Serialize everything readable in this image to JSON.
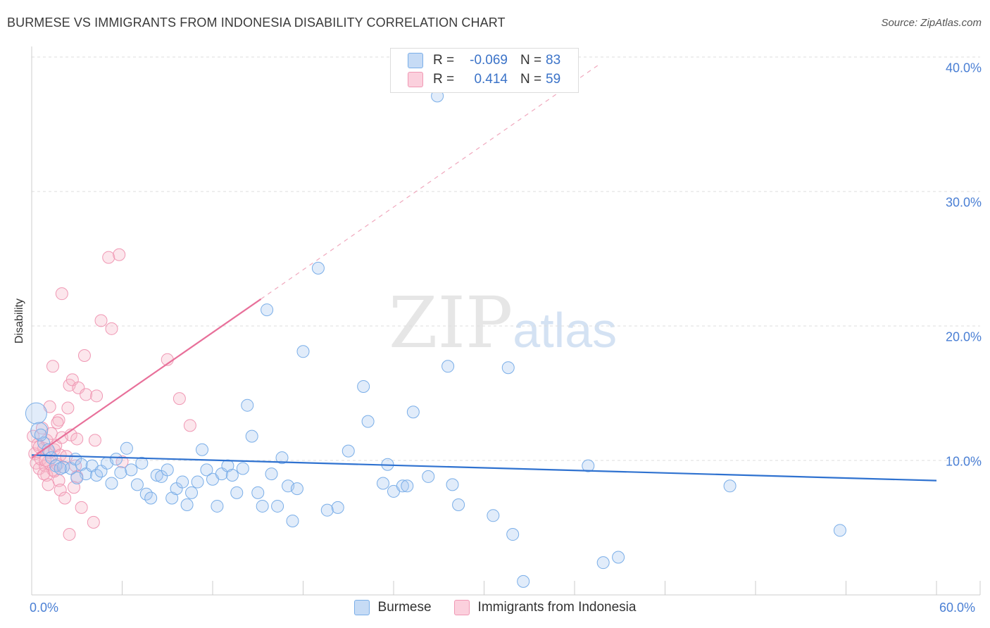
{
  "title": "BURMESE VS IMMIGRANTS FROM INDONESIA DISABILITY CORRELATION CHART",
  "source": "Source: ZipAtlas.com",
  "watermark": {
    "zip": "ZIP",
    "atlas": "atlas"
  },
  "legend": {
    "rows": [
      {
        "r_label": "R =",
        "r_value": "-0.069",
        "n_label": "N =",
        "n_value": "83",
        "color": "#a8c8f0"
      },
      {
        "r_label": "R =",
        "r_value": "0.414",
        "n_label": "N =",
        "n_value": "59",
        "color": "#f6b8c8"
      }
    ]
  },
  "bottom_legend": [
    {
      "label": "Burmese",
      "color": "#a8c8f0"
    },
    {
      "label": "Immigrants from Indonesia",
      "color": "#f6b8c8"
    }
  ],
  "chart_data": {
    "type": "scatter",
    "title": "BURMESE VS IMMIGRANTS FROM INDONESIA DISABILITY CORRELATION CHART",
    "xlabel": "",
    "ylabel": "Disability",
    "xlim": [
      0,
      60
    ],
    "ylim": [
      0,
      40
    ],
    "x_tick_labels": [
      "0.0%",
      "60.0%"
    ],
    "y_ticks": [
      10,
      20,
      30,
      40
    ],
    "y_tick_labels": [
      "10.0%",
      "20.0%",
      "30.0%",
      "40.0%"
    ],
    "grid": true,
    "legend_position": "top-center",
    "series": [
      {
        "name": "Burmese",
        "color": "#7aaee8",
        "trend": {
          "x": [
            0,
            60
          ],
          "y": [
            10.4,
            8.5
          ]
        },
        "points": [
          [
            0.3,
            13.5
          ],
          [
            0.5,
            12.2
          ],
          [
            0.8,
            11.3
          ],
          [
            1.1,
            10.8
          ],
          [
            1.3,
            10.2
          ],
          [
            1.6,
            9.6
          ],
          [
            2.1,
            9.5
          ],
          [
            2.6,
            9.4
          ],
          [
            2.9,
            10.1
          ],
          [
            3.3,
            9.7
          ],
          [
            3.6,
            9.0
          ],
          [
            4.0,
            9.6
          ],
          [
            4.3,
            8.9
          ],
          [
            4.6,
            9.2
          ],
          [
            5.0,
            9.8
          ],
          [
            5.3,
            8.3
          ],
          [
            5.6,
            10.1
          ],
          [
            5.9,
            9.1
          ],
          [
            6.3,
            10.9
          ],
          [
            6.6,
            9.3
          ],
          [
            7.0,
            8.2
          ],
          [
            7.3,
            9.8
          ],
          [
            7.6,
            7.5
          ],
          [
            7.9,
            7.2
          ],
          [
            8.3,
            8.9
          ],
          [
            8.6,
            8.8
          ],
          [
            9.0,
            9.3
          ],
          [
            9.3,
            7.2
          ],
          [
            9.6,
            7.9
          ],
          [
            10.0,
            8.4
          ],
          [
            10.3,
            6.7
          ],
          [
            10.6,
            7.6
          ],
          [
            11.0,
            8.4
          ],
          [
            11.3,
            10.8
          ],
          [
            11.6,
            9.3
          ],
          [
            12.0,
            8.6
          ],
          [
            12.3,
            6.6
          ],
          [
            12.6,
            9.0
          ],
          [
            13.0,
            9.6
          ],
          [
            13.3,
            8.9
          ],
          [
            13.6,
            7.6
          ],
          [
            14.0,
            9.4
          ],
          [
            14.3,
            14.1
          ],
          [
            14.6,
            11.8
          ],
          [
            15.0,
            7.6
          ],
          [
            15.3,
            6.6
          ],
          [
            15.6,
            21.2
          ],
          [
            15.9,
            9.0
          ],
          [
            16.3,
            6.6
          ],
          [
            16.6,
            10.2
          ],
          [
            17.0,
            8.1
          ],
          [
            17.3,
            5.5
          ],
          [
            17.6,
            7.9
          ],
          [
            18.0,
            18.1
          ],
          [
            19.0,
            24.3
          ],
          [
            19.6,
            6.3
          ],
          [
            20.3,
            6.5
          ],
          [
            21.0,
            10.7
          ],
          [
            22.0,
            15.5
          ],
          [
            22.3,
            12.9
          ],
          [
            23.3,
            8.3
          ],
          [
            23.6,
            9.7
          ],
          [
            24.0,
            7.7
          ],
          [
            24.6,
            8.1
          ],
          [
            24.9,
            8.1
          ],
          [
            25.3,
            13.6
          ],
          [
            26.3,
            8.8
          ],
          [
            26.9,
            37.1
          ],
          [
            27.6,
            17.0
          ],
          [
            27.9,
            8.2
          ],
          [
            28.3,
            6.7
          ],
          [
            30.6,
            5.9
          ],
          [
            31.6,
            16.9
          ],
          [
            31.9,
            4.5
          ],
          [
            32.6,
            1.0
          ],
          [
            36.9,
            9.6
          ],
          [
            37.9,
            2.4
          ],
          [
            38.9,
            2.8
          ],
          [
            46.3,
            8.1
          ],
          [
            53.6,
            4.8
          ],
          [
            0.6,
            11.9
          ],
          [
            1.9,
            9.4
          ],
          [
            3.0,
            8.7
          ]
        ]
      },
      {
        "name": "Immigrants from Indonesia",
        "color": "#f098b4",
        "trend": {
          "x": [
            0,
            15.2
          ],
          "y": [
            10.2,
            22.0
          ]
        },
        "trend_ext": {
          "x": [
            15.2,
            37.7
          ],
          "y": [
            22.0,
            39.5
          ]
        },
        "points": [
          [
            0.1,
            11.8
          ],
          [
            0.2,
            10.5
          ],
          [
            0.3,
            9.8
          ],
          [
            0.4,
            11.2
          ],
          [
            0.5,
            9.4
          ],
          [
            0.6,
            10.1
          ],
          [
            0.7,
            12.4
          ],
          [
            0.8,
            10.9
          ],
          [
            0.9,
            9.6
          ],
          [
            1.0,
            11.5
          ],
          [
            1.1,
            9.9
          ],
          [
            1.2,
            10.6
          ],
          [
            1.3,
            12.0
          ],
          [
            1.4,
            9.3
          ],
          [
            1.5,
            10.8
          ],
          [
            1.6,
            11.1
          ],
          [
            1.7,
            9.7
          ],
          [
            1.8,
            13.0
          ],
          [
            1.9,
            10.4
          ],
          [
            2.0,
            11.7
          ],
          [
            1.2,
            14.0
          ],
          [
            1.4,
            17.0
          ],
          [
            1.7,
            12.8
          ],
          [
            1.8,
            8.5
          ],
          [
            1.9,
            7.8
          ],
          [
            2.0,
            22.4
          ],
          [
            2.1,
            9.5
          ],
          [
            2.2,
            7.2
          ],
          [
            2.4,
            13.9
          ],
          [
            2.5,
            15.6
          ],
          [
            2.6,
            11.9
          ],
          [
            2.7,
            16.0
          ],
          [
            2.8,
            8.0
          ],
          [
            2.9,
            9.6
          ],
          [
            3.0,
            11.6
          ],
          [
            3.1,
            15.4
          ],
          [
            3.3,
            6.5
          ],
          [
            3.5,
            17.8
          ],
          [
            3.6,
            14.9
          ],
          [
            4.1,
            5.4
          ],
          [
            4.2,
            11.5
          ],
          [
            4.3,
            14.8
          ],
          [
            4.6,
            20.4
          ],
          [
            5.1,
            25.1
          ],
          [
            5.3,
            19.8
          ],
          [
            5.8,
            25.3
          ],
          [
            6.0,
            9.9
          ],
          [
            9.0,
            17.5
          ],
          [
            9.8,
            14.6
          ],
          [
            10.5,
            12.6
          ],
          [
            2.5,
            4.5
          ],
          [
            1.0,
            8.9
          ],
          [
            0.8,
            9.0
          ],
          [
            1.5,
            9.2
          ],
          [
            0.9,
            10.0
          ],
          [
            2.3,
            10.3
          ],
          [
            1.1,
            8.2
          ],
          [
            0.5,
            11.0
          ],
          [
            3.0,
            8.8
          ]
        ]
      }
    ]
  }
}
